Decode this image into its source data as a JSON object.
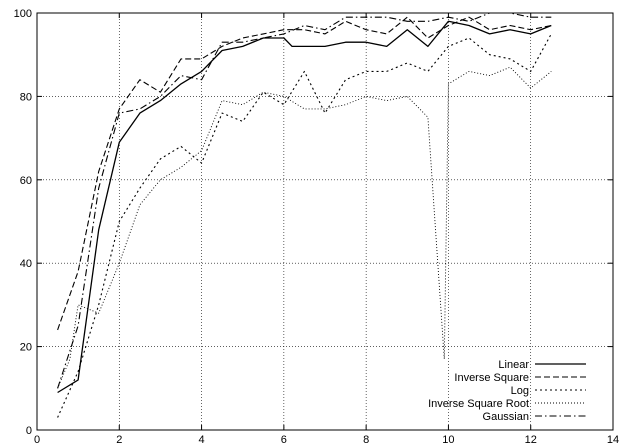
{
  "chart_data": {
    "type": "line",
    "xlim": [
      0,
      14
    ],
    "ylim": [
      0,
      100
    ],
    "x_ticks": [
      0,
      2,
      4,
      6,
      8,
      10,
      12,
      14
    ],
    "y_ticks": [
      0,
      20,
      40,
      60,
      80,
      100
    ],
    "grid": true,
    "legend_position": "bottom-right",
    "series": [
      {
        "name": "Linear",
        "dash": "solid",
        "points": [
          [
            0.5,
            9
          ],
          [
            1.0,
            12
          ],
          [
            1.5,
            48
          ],
          [
            2.0,
            69
          ],
          [
            2.5,
            76
          ],
          [
            3.0,
            79
          ],
          [
            3.5,
            83
          ],
          [
            4.0,
            86
          ],
          [
            4.5,
            91
          ],
          [
            5.0,
            92
          ],
          [
            5.5,
            94
          ],
          [
            6.0,
            94
          ],
          [
            6.2,
            92
          ],
          [
            6.5,
            92
          ],
          [
            7.0,
            92
          ],
          [
            7.5,
            93
          ],
          [
            8.0,
            93
          ],
          [
            8.5,
            92
          ],
          [
            9.0,
            96
          ],
          [
            9.5,
            92
          ],
          [
            10.0,
            98
          ],
          [
            10.5,
            97
          ],
          [
            11.0,
            95
          ],
          [
            11.5,
            96
          ],
          [
            12.0,
            95
          ],
          [
            12.5,
            97
          ]
        ]
      },
      {
        "name": "Inverse Square",
        "dash": "longdash",
        "points": [
          [
            0.5,
            24
          ],
          [
            1.0,
            38
          ],
          [
            1.5,
            62
          ],
          [
            2.0,
            77
          ],
          [
            2.5,
            84
          ],
          [
            3.0,
            81
          ],
          [
            3.5,
            89
          ],
          [
            4.0,
            89
          ],
          [
            4.5,
            92
          ],
          [
            5.0,
            94
          ],
          [
            5.5,
            95
          ],
          [
            6.0,
            96
          ],
          [
            6.5,
            96
          ],
          [
            7.0,
            95
          ],
          [
            7.5,
            98
          ],
          [
            8.0,
            96
          ],
          [
            8.5,
            95
          ],
          [
            9.0,
            99
          ],
          [
            9.5,
            94
          ],
          [
            10.0,
            97
          ],
          [
            10.5,
            99
          ],
          [
            11.0,
            96
          ],
          [
            11.5,
            97
          ],
          [
            12.0,
            96
          ],
          [
            12.5,
            97
          ]
        ]
      },
      {
        "name": "Log",
        "dash": "dot",
        "points": [
          [
            0.5,
            3
          ],
          [
            1.0,
            14
          ],
          [
            1.5,
            30
          ],
          [
            2.0,
            50
          ],
          [
            2.5,
            58
          ],
          [
            3.0,
            65
          ],
          [
            3.5,
            68
          ],
          [
            4.0,
            64
          ],
          [
            4.5,
            76
          ],
          [
            5.0,
            74
          ],
          [
            5.5,
            81
          ],
          [
            6.0,
            78
          ],
          [
            6.5,
            86
          ],
          [
            7.0,
            76
          ],
          [
            7.5,
            84
          ],
          [
            8.0,
            86
          ],
          [
            8.5,
            86
          ],
          [
            9.0,
            88
          ],
          [
            9.5,
            86
          ],
          [
            10.0,
            92
          ],
          [
            10.5,
            94
          ],
          [
            11.0,
            90
          ],
          [
            11.5,
            89
          ],
          [
            12.0,
            86
          ],
          [
            12.5,
            95
          ]
        ]
      },
      {
        "name": "Inverse Square Root",
        "dash": "finedot",
        "points": [
          [
            0.5,
            10
          ],
          [
            0.8,
            17
          ],
          [
            1.0,
            30
          ],
          [
            1.5,
            28
          ],
          [
            2.0,
            40
          ],
          [
            2.5,
            54
          ],
          [
            3.0,
            60
          ],
          [
            3.5,
            63
          ],
          [
            4.0,
            67
          ],
          [
            4.5,
            79
          ],
          [
            5.0,
            78
          ],
          [
            5.5,
            81
          ],
          [
            6.0,
            80
          ],
          [
            6.5,
            77
          ],
          [
            7.0,
            77
          ],
          [
            7.5,
            78
          ],
          [
            8.0,
            80
          ],
          [
            8.5,
            79
          ],
          [
            9.0,
            80
          ],
          [
            9.5,
            75
          ],
          [
            9.9,
            17
          ],
          [
            10.0,
            83
          ],
          [
            10.5,
            86
          ],
          [
            11.0,
            85
          ],
          [
            11.5,
            87
          ],
          [
            12.0,
            82
          ],
          [
            12.5,
            86
          ]
        ]
      },
      {
        "name": "Gaussian",
        "dash": "dashdot",
        "points": [
          [
            0.5,
            10
          ],
          [
            1.0,
            25
          ],
          [
            1.5,
            58
          ],
          [
            2.0,
            76
          ],
          [
            2.5,
            77
          ],
          [
            3.0,
            80
          ],
          [
            3.5,
            85
          ],
          [
            4.0,
            84
          ],
          [
            4.5,
            93
          ],
          [
            5.0,
            93
          ],
          [
            5.5,
            94
          ],
          [
            6.0,
            95
          ],
          [
            6.5,
            97
          ],
          [
            7.0,
            96
          ],
          [
            7.5,
            99
          ],
          [
            8.0,
            99
          ],
          [
            8.5,
            99
          ],
          [
            9.0,
            98
          ],
          [
            9.5,
            98
          ],
          [
            10.0,
            99
          ],
          [
            10.5,
            98
          ],
          [
            11.0,
            100
          ],
          [
            11.5,
            100
          ],
          [
            12.0,
            99
          ],
          [
            12.5,
            99
          ]
        ]
      }
    ]
  }
}
